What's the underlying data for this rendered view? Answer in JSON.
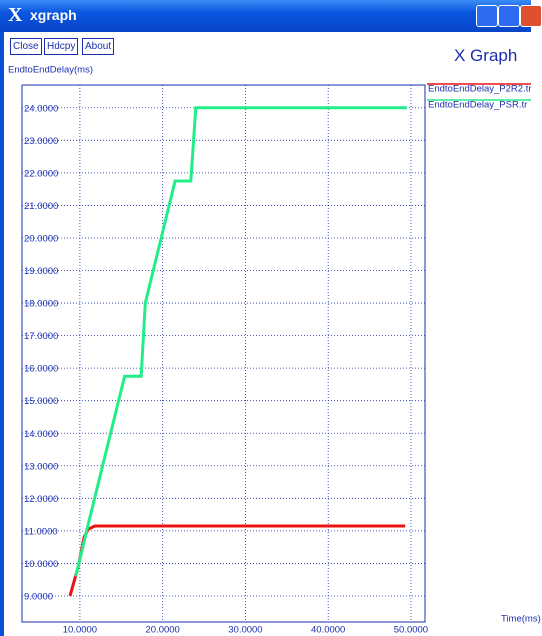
{
  "window": {
    "title": "xgraph",
    "buttons": [
      "Close",
      "Hdcpy",
      "About"
    ],
    "brand": "X Graph"
  },
  "chart_data": {
    "type": "line",
    "ylabel": "EndtoEndDelay(ms)",
    "xlabel": "Time(ms)",
    "xlim": [
      3.0,
      51.7
    ],
    "ylim": [
      8.2,
      24.7
    ],
    "xticks": [
      {
        "value": 10,
        "label": "10.0000"
      },
      {
        "value": 20,
        "label": "20.0000"
      },
      {
        "value": 30,
        "label": "30.0000"
      },
      {
        "value": 40,
        "label": "40.0000"
      },
      {
        "value": 50,
        "label": "50.0000"
      }
    ],
    "yticks": [
      {
        "value": 9,
        "label": "9.0000"
      },
      {
        "value": 10,
        "label": "10.0000"
      },
      {
        "value": 11,
        "label": "11.0000"
      },
      {
        "value": 12,
        "label": "12.0000"
      },
      {
        "value": 13,
        "label": "13.0000"
      },
      {
        "value": 14,
        "label": "14.0000"
      },
      {
        "value": 15,
        "label": "15.0000"
      },
      {
        "value": 16,
        "label": "16.0000"
      },
      {
        "value": 17,
        "label": "17.0000"
      },
      {
        "value": 18,
        "label": "18.0000"
      },
      {
        "value": 19,
        "label": "19.0000"
      },
      {
        "value": 20,
        "label": "20.0000"
      },
      {
        "value": 21,
        "label": "21.0000"
      },
      {
        "value": 22,
        "label": "22.0000"
      },
      {
        "value": 23,
        "label": "23.0000"
      },
      {
        "value": 24,
        "label": "24.0000"
      }
    ],
    "grid": true,
    "series": [
      {
        "name": "EndtoEndDelay_P2R2.tr",
        "color": "#ee1111",
        "x": [
          8.8,
          9.8,
          10.5,
          11.0,
          11.8,
          49.3
        ],
        "values": [
          9.0,
          9.9,
          10.8,
          11.05,
          11.15,
          11.15
        ]
      },
      {
        "name": "EndtoEndDelay_PSR.tr",
        "color": "#22ee88",
        "x": [
          9.5,
          11.0,
          15.4,
          17.4,
          17.9,
          21.5,
          23.4,
          24.0,
          49.5
        ],
        "values": [
          9.6,
          11.2,
          15.75,
          15.75,
          18.0,
          21.75,
          21.75,
          24.0,
          24.0
        ]
      }
    ]
  }
}
